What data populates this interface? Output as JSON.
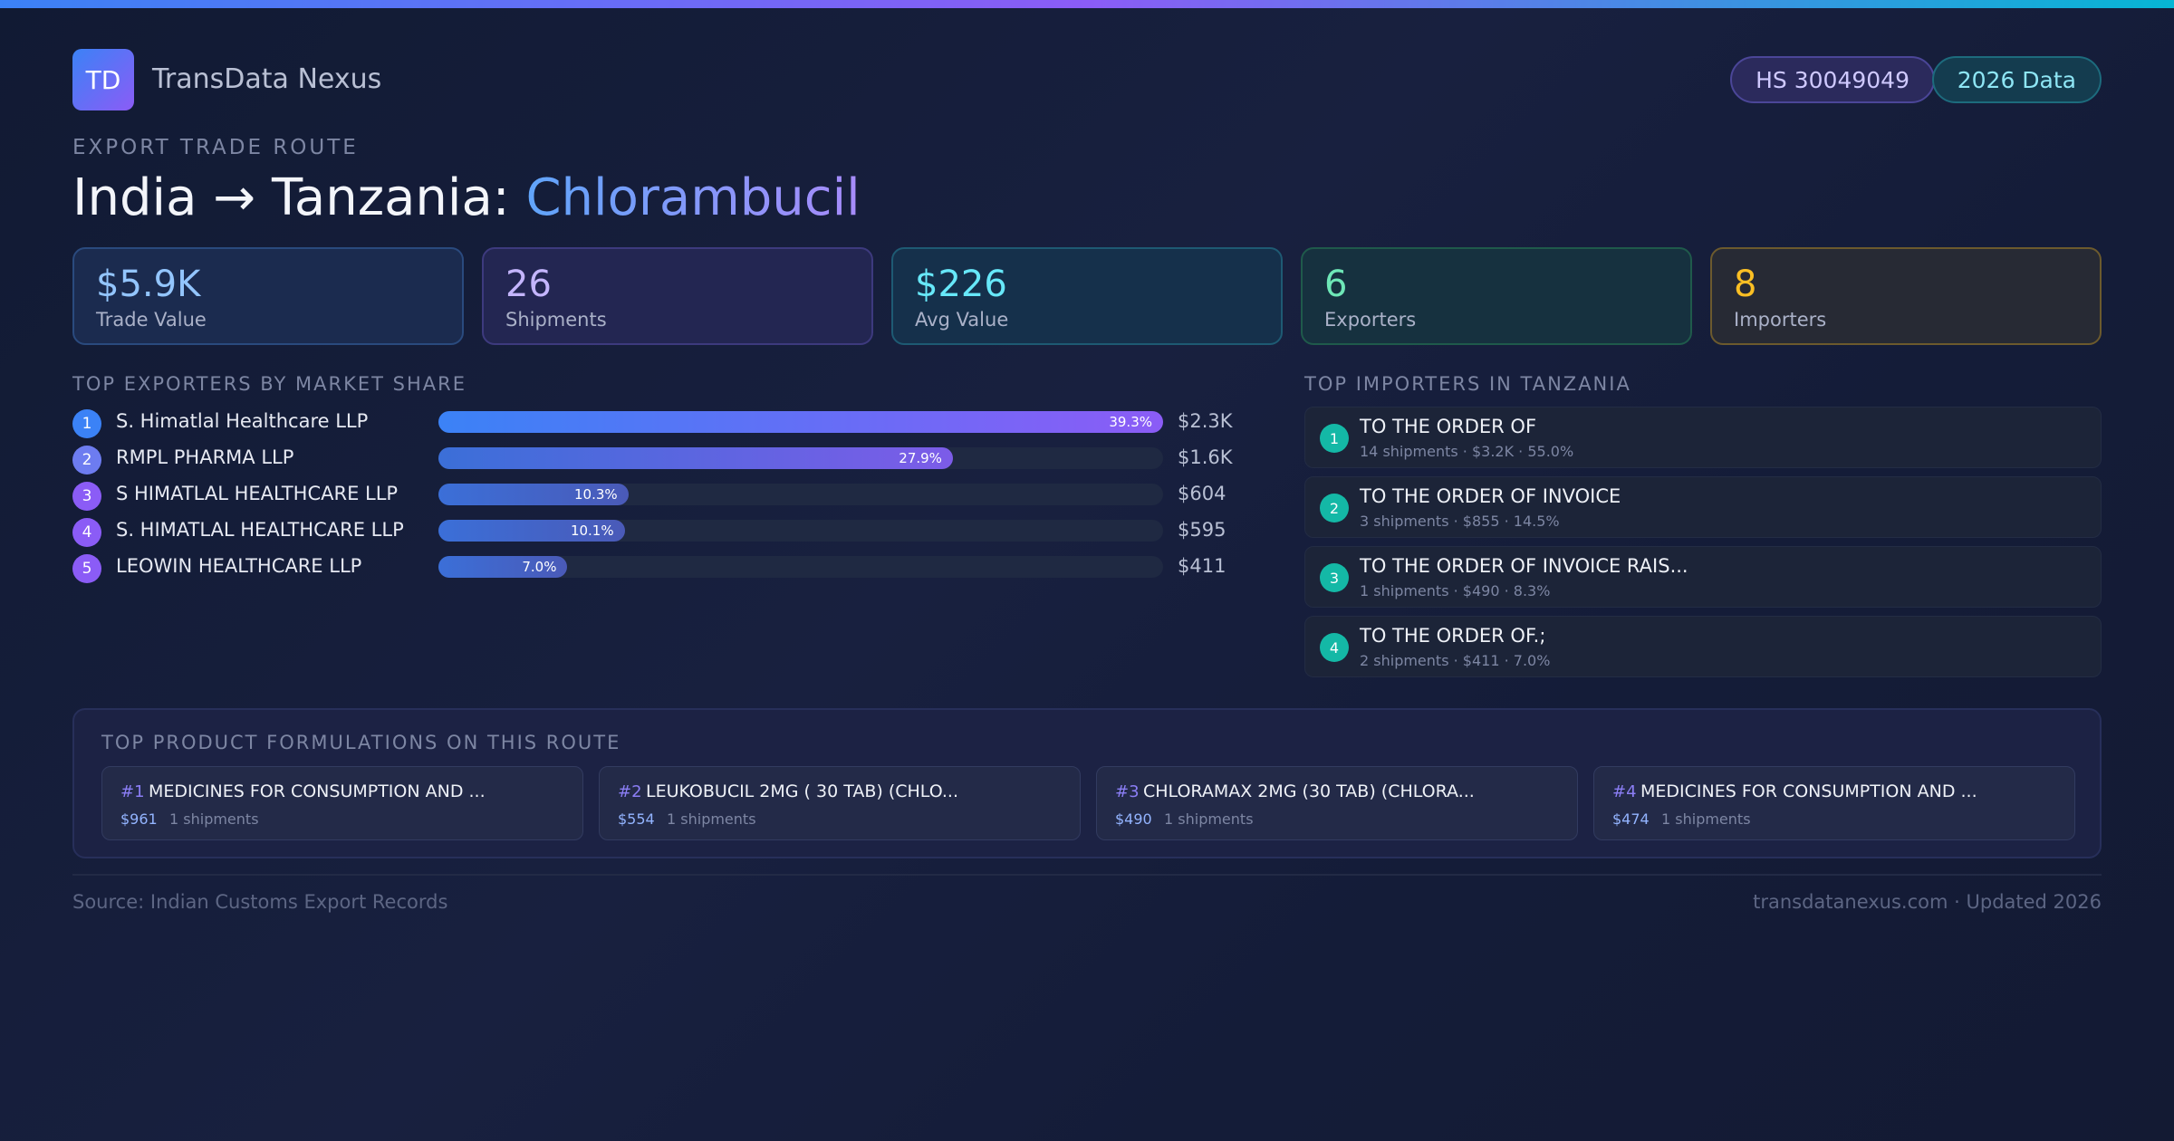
{
  "header": {
    "logo_text": "TD",
    "brand": "TransData Nexus",
    "hs_code": "HS 30049049",
    "data_year": "2026 Data"
  },
  "hero": {
    "eyebrow": "EXPORT TRADE ROUTE",
    "route": "India → Tanzania: ",
    "product": "Chlorambucil"
  },
  "stats": [
    {
      "value": "$5.9K",
      "label": "Trade Value"
    },
    {
      "value": "26",
      "label": "Shipments"
    },
    {
      "value": "$226",
      "label": "Avg Value"
    },
    {
      "value": "6",
      "label": "Exporters"
    },
    {
      "value": "8",
      "label": "Importers"
    }
  ],
  "exporters": {
    "title": "TOP EXPORTERS BY MARKET SHARE",
    "items": [
      {
        "rank": "1",
        "name": "S. Himatlal Healthcare LLP",
        "share": 39.3,
        "share_label": "39.3%",
        "value": "$2.3K",
        "color": "#3b82f6"
      },
      {
        "rank": "2",
        "name": "RMPL PHARMA LLP",
        "share": 27.9,
        "share_label": "27.9%",
        "value": "$1.6K",
        "color": "#6d7cf0"
      },
      {
        "rank": "3",
        "name": "S HIMATLAL HEALTHCARE LLP",
        "share": 10.3,
        "share_label": "10.3%",
        "value": "$604",
        "color": "#8b5cf6"
      },
      {
        "rank": "4",
        "name": "S. HIMATLAL HEALTHCARE LLP",
        "share": 10.1,
        "share_label": "10.1%",
        "value": "$595",
        "color": "#8b5cf6"
      },
      {
        "rank": "5",
        "name": "LEOWIN HEALTHCARE LLP",
        "share": 7.0,
        "share_label": "7.0%",
        "value": "$411",
        "color": "#8b5cf6"
      }
    ]
  },
  "importers": {
    "title": "TOP IMPORTERS IN TANZANIA",
    "items": [
      {
        "rank": "1",
        "name": "TO THE ORDER OF",
        "meta": "14 shipments · $3.2K · 55.0%"
      },
      {
        "rank": "2",
        "name": "TO THE ORDER OF INVOICE",
        "meta": "3 shipments · $855 · 14.5%"
      },
      {
        "rank": "3",
        "name": "TO THE ORDER OF INVOICE RAIS...",
        "meta": "1 shipments · $490 · 8.3%"
      },
      {
        "rank": "4",
        "name": "TO THE ORDER OF.;",
        "meta": "2 shipments · $411 · 7.0%"
      }
    ]
  },
  "formulations": {
    "title": "TOP PRODUCT FORMULATIONS ON THIS ROUTE",
    "items": [
      {
        "num": "#1",
        "name": "MEDICINES FOR CONSUMPTION AND ...",
        "value": "$961",
        "shipments": "1 shipments"
      },
      {
        "num": "#2",
        "name": "LEUKOBUCIL 2MG ( 30 TAB) (CHLO...",
        "value": "$554",
        "shipments": "1 shipments"
      },
      {
        "num": "#3",
        "name": "CHLORAMAX 2MG (30 TAB) (CHLORA...",
        "value": "$490",
        "shipments": "1 shipments"
      },
      {
        "num": "#4",
        "name": "MEDICINES FOR CONSUMPTION AND ...",
        "value": "$474",
        "shipments": "1 shipments"
      }
    ]
  },
  "footer": {
    "source": "Source: Indian Customs Export Records",
    "site": "transdatanexus.com · Updated 2026"
  }
}
